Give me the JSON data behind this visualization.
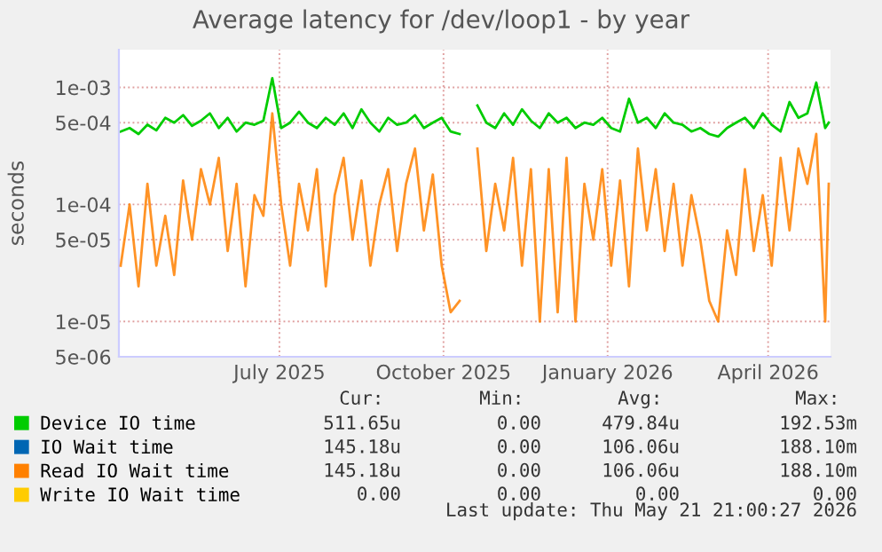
{
  "chart_data": {
    "type": "line",
    "title": "Average latency for /dev/loop1 - by year",
    "ylabel": "seconds",
    "x": [
      "2025-04-18",
      "2025-04-23",
      "2025-04-28",
      "2025-05-03",
      "2025-05-08",
      "2025-05-13",
      "2025-05-18",
      "2025-05-23",
      "2025-05-28",
      "2025-06-02",
      "2025-06-07",
      "2025-06-12",
      "2025-06-17",
      "2025-06-22",
      "2025-06-27",
      "2025-07-02",
      "2025-07-07",
      "2025-07-12",
      "2025-07-17",
      "2025-07-22",
      "2025-07-27",
      "2025-08-01",
      "2025-08-06",
      "2025-08-11",
      "2025-08-16",
      "2025-08-21",
      "2025-08-26",
      "2025-08-31",
      "2025-09-05",
      "2025-09-10",
      "2025-09-15",
      "2025-09-20",
      "2025-09-25",
      "2025-09-30",
      "2025-10-05",
      "2025-10-10",
      "2025-10-15",
      "2025-10-20",
      "2025-10-25",
      "2025-10-30",
      "2025-11-04",
      "2025-11-09",
      "2025-11-14",
      "2025-11-19",
      "2025-11-24",
      "2025-11-29",
      "2025-12-04",
      "2025-12-09",
      "2025-12-14",
      "2025-12-19",
      "2025-12-24",
      "2025-12-29",
      "2026-01-03",
      "2026-01-08",
      "2026-01-13",
      "2026-01-18",
      "2026-01-23",
      "2026-01-28",
      "2026-02-02",
      "2026-02-07",
      "2026-02-12",
      "2026-02-17",
      "2026-02-22",
      "2026-02-27",
      "2026-03-04",
      "2026-03-09",
      "2026-03-14",
      "2026-03-19",
      "2026-03-24",
      "2026-03-29",
      "2026-04-03",
      "2026-04-08",
      "2026-04-13",
      "2026-04-18",
      "2026-04-23",
      "2026-04-28",
      "2026-05-03",
      "2026-05-08",
      "2026-05-13",
      "2026-05-18",
      "2026-05-20"
    ],
    "series": [
      {
        "name": "Device IO time",
        "color": "#00cc00",
        "values": [
          0.00042,
          0.00045,
          0.0004,
          0.00048,
          0.00043,
          0.00055,
          0.0005,
          0.00058,
          0.00047,
          0.00052,
          0.0006,
          0.00045,
          0.00055,
          0.00042,
          0.0005,
          0.00048,
          0.00052,
          0.0012,
          0.00045,
          0.0005,
          0.00062,
          0.0005,
          0.00045,
          0.00055,
          0.00048,
          0.0006,
          0.00045,
          0.00065,
          0.0005,
          0.00042,
          0.00055,
          0.00048,
          0.0005,
          0.00058,
          0.00045,
          0.0005,
          0.00055,
          0.00042,
          0.0004,
          null,
          0.0007,
          0.0005,
          0.00045,
          0.0006,
          0.00048,
          0.00065,
          0.00052,
          0.00045,
          0.0006,
          0.0005,
          0.00055,
          0.00045,
          0.0005,
          0.00048,
          0.00055,
          0.00045,
          0.00042,
          0.0008,
          0.0005,
          0.00055,
          0.00045,
          0.0006,
          0.0005,
          0.00048,
          0.00042,
          0.00045,
          0.0004,
          0.00038,
          0.00045,
          0.0005,
          0.00055,
          0.00045,
          0.0006,
          0.00048,
          0.00042,
          0.00075,
          0.00055,
          0.0006,
          0.0011,
          0.00045,
          0.0005
        ]
      },
      {
        "name": "IO Wait time",
        "color": "#0066b3",
        "values": [
          null,
          null,
          null,
          null,
          null,
          null,
          null,
          null,
          null,
          null,
          null,
          null,
          null,
          null,
          null,
          null,
          null,
          null,
          null,
          null,
          null,
          null,
          null,
          null,
          null,
          null,
          null,
          null,
          null,
          null,
          null,
          null,
          null,
          null,
          null,
          null,
          null,
          null,
          null,
          null,
          null,
          null,
          null,
          null,
          null,
          null,
          null,
          null,
          null,
          null,
          null,
          null,
          null,
          null,
          null,
          null,
          null,
          null,
          null,
          null,
          null,
          null,
          null,
          null,
          null,
          null,
          null,
          null,
          null,
          null,
          null,
          null,
          null,
          null,
          null,
          null,
          null,
          null,
          null,
          null,
          null
        ]
      },
      {
        "name": "Read IO Wait time",
        "color": "#ff8000",
        "values": [
          3e-05,
          0.0001,
          2e-05,
          0.00015,
          3e-05,
          8e-05,
          2.5e-05,
          0.00016,
          5e-05,
          0.0002,
          0.0001,
          0.00025,
          4e-05,
          0.00015,
          2e-05,
          0.00012,
          8e-05,
          0.0006,
          0.0001,
          3e-05,
          0.00015,
          6e-05,
          0.0002,
          2e-05,
          0.00012,
          0.00025,
          5e-05,
          0.00016,
          3e-05,
          0.0001,
          0.0002,
          4e-05,
          0.00015,
          0.0003,
          6e-05,
          0.00018,
          3e-05,
          1.2e-05,
          1.5e-05,
          null,
          0.0003,
          4e-05,
          0.00015,
          6e-05,
          0.00025,
          3e-05,
          0.0002,
          1e-05,
          0.0002,
          1.2e-05,
          0.00025,
          1e-05,
          0.00015,
          5e-05,
          0.0002,
          3e-05,
          0.00016,
          2e-05,
          0.0003,
          6e-05,
          0.0002,
          4e-05,
          0.00015,
          3e-05,
          0.00012,
          5e-05,
          1.5e-05,
          1e-05,
          6e-05,
          2.5e-05,
          0.0002,
          4e-05,
          0.00012,
          3e-05,
          0.00025,
          6e-05,
          0.0003,
          0.00015,
          0.0004,
          1e-05,
          0.00015
        ]
      },
      {
        "name": "Write IO Wait time",
        "color": "#ffcc00",
        "values": [
          null,
          null,
          null,
          null,
          null,
          null,
          null,
          null,
          null,
          null,
          null,
          null,
          null,
          null,
          null,
          null,
          null,
          null,
          null,
          null,
          null,
          null,
          null,
          null,
          null,
          null,
          null,
          null,
          null,
          null,
          null,
          null,
          null,
          null,
          null,
          null,
          null,
          null,
          null,
          null,
          null,
          null,
          null,
          null,
          null,
          null,
          null,
          null,
          null,
          null,
          null,
          null,
          null,
          null,
          null,
          null,
          null,
          null,
          null,
          null,
          null,
          null,
          null,
          null,
          null,
          null,
          null,
          null,
          null,
          null,
          null,
          null,
          null,
          null,
          null,
          null,
          null,
          null,
          null,
          null,
          null
        ]
      }
    ],
    "log": "y",
    "xlim": [
      "2025-04-17",
      "2026-05-21"
    ],
    "xticks": [
      {
        "value": "2025-07-16",
        "label": "July 2025"
      },
      {
        "value": "2025-10-16",
        "label": "October 2025"
      },
      {
        "value": "2026-01-16",
        "label": "January 2026"
      },
      {
        "value": "2026-04-16",
        "label": "April 2026"
      }
    ],
    "ylim": [
      5e-06,
      0.0021
    ],
    "yticks": [
      {
        "value": 5e-06,
        "label": "5e-06"
      },
      {
        "value": 1e-05,
        "label": "1e-05"
      },
      {
        "value": 5e-05,
        "label": "5e-05"
      },
      {
        "value": 0.0001,
        "label": "1e-04"
      },
      {
        "value": 0.0005,
        "label": "5e-04"
      },
      {
        "value": 0.001,
        "label": "1e-03"
      }
    ],
    "grid": true,
    "legend": "bottom",
    "line_style": "solid",
    "marker": "none",
    "annotations": [
      "Cur:",
      "Min:",
      "Avg:",
      "Max:",
      "511.65u",
      "0.00",
      "479.84u",
      "192.53m",
      "145.18u",
      "0.00",
      "106.06u",
      "188.10m",
      "145.18u",
      "0.00",
      "106.06u",
      "188.10m",
      "0.00",
      "0.00",
      "0.00",
      "0.00",
      "Last update: Thu May 21 21:00:27 2026"
    ]
  }
}
